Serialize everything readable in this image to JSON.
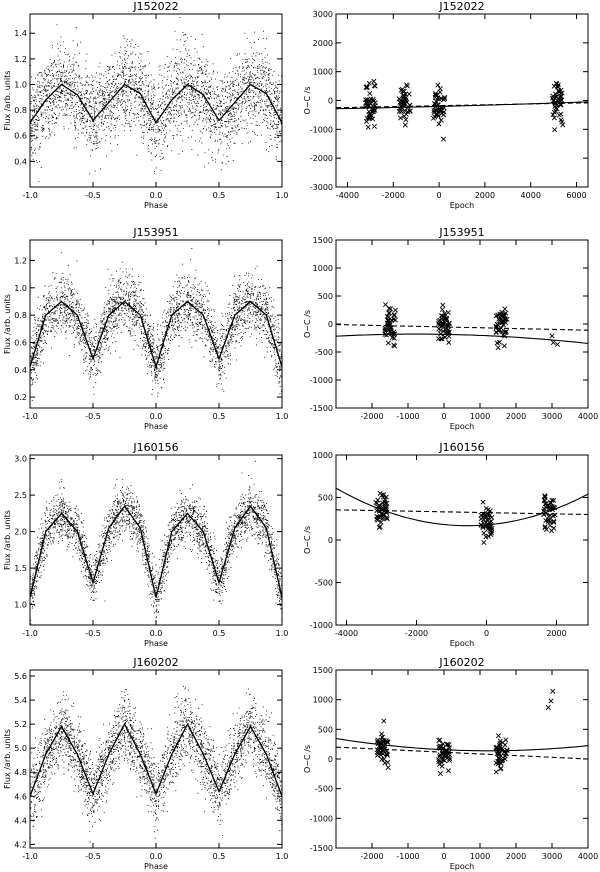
{
  "chart_data": [
    {
      "type": "scatter",
      "title": "J152022",
      "xlabel": "Phase",
      "ylabel": "Flux /arb. units",
      "xlim": [
        -1.0,
        1.0
      ],
      "ylim": [
        0.2,
        1.55
      ],
      "xticks": [
        "-1.0",
        "-0.5",
        "0.0",
        "0.5",
        "1.0"
      ],
      "xtick_values": [
        -1.0,
        -0.5,
        0.0,
        0.5,
        1.0
      ],
      "yticks": [
        "0.4",
        "0.6",
        "0.8",
        "1.0",
        "1.2",
        "1.4"
      ],
      "ytick_values": [
        0.4,
        0.6,
        0.8,
        1.0,
        1.2,
        1.4
      ],
      "series": [
        {
          "role": "points",
          "marker": "dot",
          "x": [
            -1.0,
            -0.75,
            -0.5,
            -0.25,
            0.0,
            0.25,
            0.5,
            0.75,
            1.0
          ],
          "y": [
            0.7,
            1.0,
            0.72,
            1.0,
            0.7,
            1.0,
            0.72,
            1.0,
            0.7
          ],
          "scatter": 0.3
        },
        {
          "role": "binned-mean",
          "style": "solid",
          "x": [
            -1.0,
            -0.875,
            -0.75,
            -0.625,
            -0.5,
            -0.375,
            -0.25,
            -0.125,
            0.0,
            0.125,
            0.25,
            0.375,
            0.5,
            0.625,
            0.75,
            0.875,
            1.0
          ],
          "y": [
            0.7,
            0.88,
            1.0,
            0.92,
            0.72,
            0.86,
            1.0,
            0.93,
            0.7,
            0.88,
            1.0,
            0.92,
            0.72,
            0.86,
            1.0,
            0.93,
            0.7
          ]
        }
      ]
    },
    {
      "type": "scatter",
      "title": "J152022",
      "xlabel": "Epoch",
      "ylabel": "O−C /s",
      "xlim": [
        -4500,
        6500
      ],
      "ylim": [
        -3000,
        3000
      ],
      "xticks": [
        "-4000",
        "-2000",
        "0",
        "2000",
        "4000",
        "6000"
      ],
      "xtick_values": [
        -4000,
        -2000,
        0,
        2000,
        4000,
        6000
      ],
      "yticks": [
        "-3000",
        "-2000",
        "-1000",
        "0",
        "1000",
        "2000",
        "3000"
      ],
      "ytick_values": [
        -3000,
        -2000,
        -1000,
        0,
        1000,
        2000,
        3000
      ],
      "series": [
        {
          "role": "points",
          "marker": "x",
          "x": [
            -3000,
            -1500,
            0,
            5200
          ],
          "y": [
            -200,
            -100,
            -150,
            -50
          ],
          "scatter": 700
        },
        {
          "role": "quadratic-fit",
          "style": "solid",
          "x": [
            -4500,
            6500
          ],
          "y": [
            -300,
            -60
          ],
          "curvature": 20
        },
        {
          "role": "linear-fit",
          "style": "dashed",
          "x": [
            -4500,
            6500
          ],
          "y": [
            -250,
            -80
          ]
        }
      ]
    },
    {
      "type": "scatter",
      "title": "J153951",
      "xlabel": "Phase",
      "ylabel": "Flux /arb. units",
      "xlim": [
        -1.0,
        1.0
      ],
      "ylim": [
        0.12,
        1.35
      ],
      "xticks": [
        "-1.0",
        "-0.5",
        "0.0",
        "0.5",
        "1.0"
      ],
      "xtick_values": [
        -1.0,
        -0.5,
        0.0,
        0.5,
        1.0
      ],
      "yticks": [
        "0.2",
        "0.4",
        "0.6",
        "0.8",
        "1.0",
        "1.2"
      ],
      "ytick_values": [
        0.2,
        0.4,
        0.6,
        0.8,
        1.0,
        1.2
      ],
      "series": [
        {
          "role": "points",
          "marker": "dot",
          "x": [
            -1.0,
            -0.75,
            -0.5,
            -0.25,
            0.0,
            0.25,
            0.5,
            0.75,
            1.0
          ],
          "y": [
            0.42,
            0.9,
            0.48,
            0.9,
            0.42,
            0.9,
            0.48,
            0.9,
            0.42
          ],
          "scatter": 0.2
        },
        {
          "role": "binned-mean",
          "style": "solid",
          "x": [
            -1.0,
            -0.875,
            -0.75,
            -0.625,
            -0.5,
            -0.375,
            -0.25,
            -0.125,
            0.0,
            0.125,
            0.25,
            0.375,
            0.5,
            0.625,
            0.75,
            0.875,
            1.0
          ],
          "y": [
            0.42,
            0.8,
            0.9,
            0.8,
            0.48,
            0.8,
            0.9,
            0.8,
            0.42,
            0.8,
            0.9,
            0.8,
            0.48,
            0.8,
            0.9,
            0.8,
            0.42
          ]
        }
      ]
    },
    {
      "type": "scatter",
      "title": "J153951",
      "xlabel": "Epoch",
      "ylabel": "O−C /s",
      "xlim": [
        -3000,
        4000
      ],
      "ylim": [
        -1500,
        1500
      ],
      "xticks": [
        "-2000",
        "-1000",
        "0",
        "1000",
        "2000",
        "3000",
        "4000"
      ],
      "xtick_values": [
        -2000,
        -1000,
        0,
        1000,
        2000,
        3000,
        4000
      ],
      "yticks": [
        "-1500",
        "-1000",
        "-500",
        "0",
        "500",
        "1000",
        "1500"
      ],
      "ytick_values": [
        -1500,
        -1000,
        -500,
        0,
        500,
        1000,
        1500
      ],
      "series": [
        {
          "role": "points",
          "marker": "x",
          "x": [
            -1500,
            0,
            1600,
            3050
          ],
          "y": [
            -50,
            -50,
            -60,
            -250
          ],
          "scatter": 300
        },
        {
          "role": "quadratic-fit",
          "style": "solid",
          "x": [
            -3000,
            4000
          ],
          "y": [
            -150,
            -280
          ],
          "curvature": -90
        },
        {
          "role": "linear-fit",
          "style": "dashed",
          "x": [
            -3000,
            4000
          ],
          "y": [
            -10,
            -110
          ]
        }
      ]
    },
    {
      "type": "scatter",
      "title": "J160156",
      "xlabel": "Phase",
      "ylabel": "Flux /arb. units",
      "xlim": [
        -1.0,
        1.0
      ],
      "ylim": [
        0.72,
        3.05
      ],
      "xticks": [
        "-1.0",
        "-0.5",
        "0.0",
        "0.5",
        "1.0"
      ],
      "xtick_values": [
        -1.0,
        -0.5,
        0.0,
        0.5,
        1.0
      ],
      "yticks": [
        "1.0",
        "1.5",
        "2.0",
        "2.5",
        "3.0"
      ],
      "ytick_values": [
        1.0,
        1.5,
        2.0,
        2.5,
        3.0
      ],
      "series": [
        {
          "role": "points",
          "marker": "dot",
          "x": [
            -1.0,
            -0.75,
            -0.5,
            -0.25,
            0.0,
            0.25,
            0.5,
            0.75,
            1.0
          ],
          "y": [
            1.1,
            2.25,
            1.3,
            2.35,
            1.1,
            2.25,
            1.3,
            2.35,
            1.1
          ],
          "scatter": 0.3
        },
        {
          "role": "binned-mean",
          "style": "solid",
          "x": [
            -1.0,
            -0.875,
            -0.75,
            -0.625,
            -0.5,
            -0.375,
            -0.25,
            -0.125,
            0.0,
            0.125,
            0.25,
            0.375,
            0.5,
            0.625,
            0.75,
            0.875,
            1.0
          ],
          "y": [
            1.1,
            2.0,
            2.25,
            2.0,
            1.3,
            2.05,
            2.35,
            2.05,
            1.1,
            2.0,
            2.25,
            2.0,
            1.3,
            2.05,
            2.35,
            2.05,
            1.1
          ]
        }
      ]
    },
    {
      "type": "scatter",
      "title": "J160156",
      "xlabel": "Epoch",
      "ylabel": "O−C /s",
      "xlim": [
        -4300,
        2900
      ],
      "ylim": [
        -1000,
        1000
      ],
      "xticks": [
        "-4000",
        "-2000",
        "0",
        "2000"
      ],
      "xtick_values": [
        -4000,
        -2000,
        0,
        2000
      ],
      "yticks": [
        "-1000",
        "-500",
        "0",
        "500",
        "1000"
      ],
      "ytick_values": [
        -1000,
        -500,
        0,
        500,
        1000
      ],
      "series": [
        {
          "role": "points",
          "marker": "x",
          "x": [
            -3000,
            0,
            1800
          ],
          "y": [
            360,
            220,
            330
          ],
          "scatter": 200
        },
        {
          "role": "quadratic-fit",
          "style": "solid",
          "x": [
            -4300,
            -800,
            2900
          ],
          "y": [
            610,
            170,
            540
          ],
          "curvature": 0
        },
        {
          "role": "linear-fit",
          "style": "dashed",
          "x": [
            -4300,
            2900
          ],
          "y": [
            355,
            300
          ]
        }
      ]
    },
    {
      "type": "scatter",
      "title": "J160202",
      "xlabel": "Phase",
      "ylabel": "Flux /arb. units",
      "xlim": [
        -1.0,
        1.0
      ],
      "ylim": [
        4.17,
        5.65
      ],
      "xticks": [
        "-1.0",
        "-0.5",
        "0.0",
        "0.5",
        "1.0"
      ],
      "xtick_values": [
        -1.0,
        -0.5,
        0.0,
        0.5,
        1.0
      ],
      "yticks": [
        "4.2",
        "4.4",
        "4.6",
        "4.8",
        "5.0",
        "5.2",
        "5.4",
        "5.6"
      ],
      "ytick_values": [
        4.2,
        4.4,
        4.6,
        4.8,
        5.0,
        5.2,
        5.4,
        5.6
      ],
      "series": [
        {
          "role": "points",
          "marker": "dot",
          "x": [
            -1.0,
            -0.75,
            -0.5,
            -0.25,
            0.0,
            0.25,
            0.5,
            0.75,
            1.0
          ],
          "y": [
            4.6,
            5.18,
            4.62,
            5.2,
            4.62,
            5.2,
            4.64,
            5.18,
            4.6
          ],
          "scatter": 0.25
        },
        {
          "role": "binned-mean",
          "style": "solid",
          "x": [
            -1.0,
            -0.875,
            -0.75,
            -0.625,
            -0.5,
            -0.375,
            -0.25,
            -0.125,
            0.0,
            0.125,
            0.25,
            0.375,
            0.5,
            0.625,
            0.75,
            0.875,
            1.0
          ],
          "y": [
            4.6,
            4.95,
            5.18,
            4.95,
            4.62,
            4.95,
            5.2,
            4.95,
            4.62,
            4.95,
            5.2,
            4.95,
            4.64,
            4.95,
            5.18,
            4.95,
            4.6
          ]
        }
      ]
    },
    {
      "type": "scatter",
      "title": "J160202",
      "xlabel": "Epoch",
      "ylabel": "O−C /s",
      "xlim": [
        -3000,
        4000
      ],
      "ylim": [
        -1500,
        1500
      ],
      "xticks": [
        "-2000",
        "-1000",
        "0",
        "1000",
        "2000",
        "3000",
        "4000"
      ],
      "xtick_values": [
        -2000,
        -1000,
        0,
        1000,
        2000,
        3000,
        4000
      ],
      "yticks": [
        "-1500",
        "-1000",
        "-500",
        "0",
        "500",
        "1000",
        "1500"
      ],
      "ytick_values": [
        -1500,
        -1000,
        -500,
        0,
        500,
        1000,
        1500
      ],
      "series": [
        {
          "role": "points",
          "marker": "x",
          "x": [
            -1700,
            0,
            1600,
            3050
          ],
          "y": [
            150,
            100,
            80,
            900
          ],
          "scatter": 250
        },
        {
          "role": "quadratic-fit",
          "style": "solid",
          "x": [
            -3000,
            4000
          ],
          "y": [
            240,
            120
          ],
          "curvature": 140
        },
        {
          "role": "linear-fit",
          "style": "dashed",
          "x": [
            -3000,
            4000
          ],
          "y": [
            200,
            0
          ]
        }
      ]
    }
  ]
}
